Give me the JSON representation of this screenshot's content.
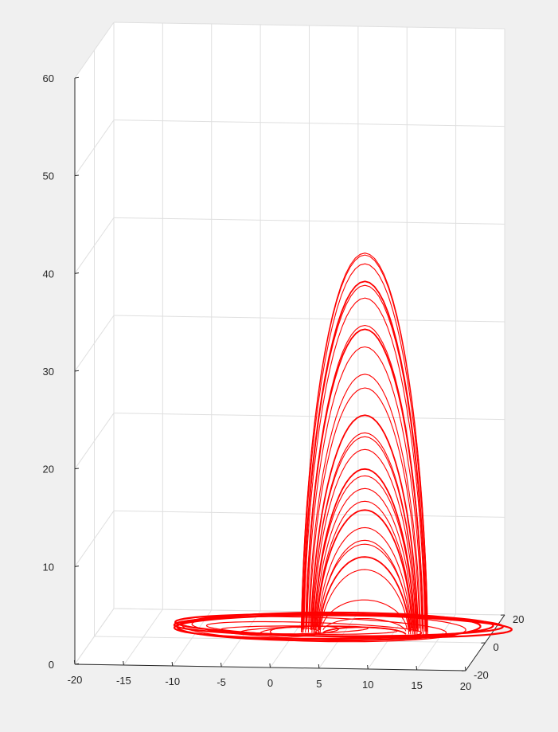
{
  "chart_data": {
    "type": "line",
    "title": "",
    "xlabel": "",
    "ylabel": "",
    "zlabel": "",
    "projection": "3d",
    "grid": true,
    "xlim": [
      -20,
      20
    ],
    "ylim": [
      -20,
      20
    ],
    "zlim": [
      0,
      60
    ],
    "x_ticks": [
      "-20",
      "-15",
      "-10",
      "-5",
      "0",
      "5",
      "10",
      "15",
      "20"
    ],
    "y_ticks": [
      "-20",
      "0",
      "20"
    ],
    "z_ticks": [
      "0",
      "10",
      "20",
      "30",
      "40",
      "50",
      "60"
    ],
    "series": [
      {
        "color": "#ff0000",
        "loop_peak_heights": [
          0.6,
          1.2,
          2.8,
          6.5,
          7.5,
          8.5,
          9.5,
          10.5,
          12.0,
          13.5,
          14.5,
          15.5,
          16.8,
          18.5,
          19.5,
          20.5,
          22.0,
          24.5,
          26.5,
          29.0,
          30.5,
          31.5,
          34.0,
          35.0,
          36.0,
          37.5,
          38.3,
          38.7
        ],
        "centre_xy": [
          7.5,
          2.0
        ],
        "spiral_centre_xy": [
          0.5,
          0.0
        ]
      }
    ]
  },
  "colors": {
    "background": "#f0f0f0",
    "axes_background": "#ffffff",
    "grid": "#dfdfdf",
    "axis": "#262626",
    "trajectory": "#ff0000"
  }
}
